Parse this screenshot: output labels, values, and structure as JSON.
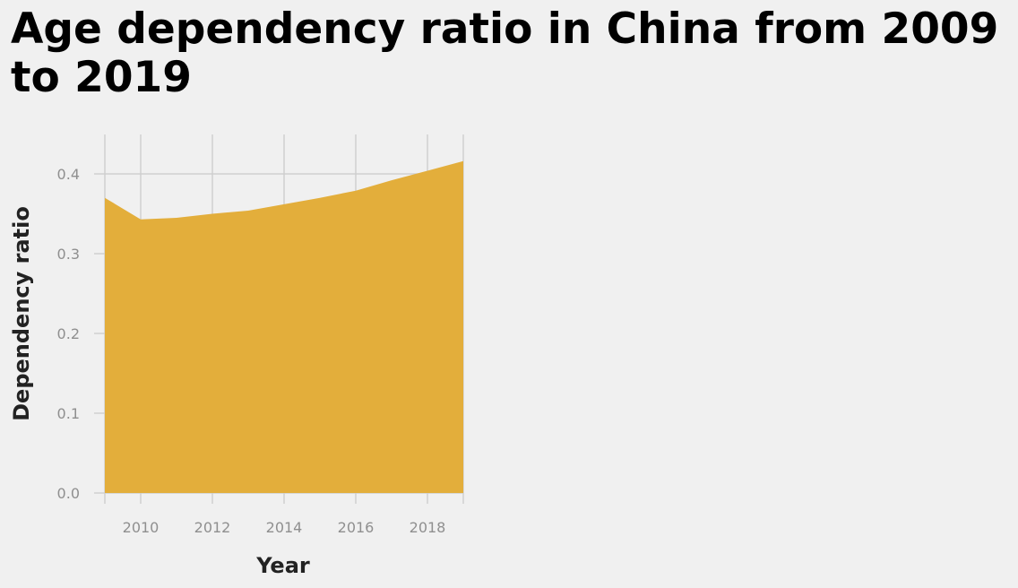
{
  "chart_data": {
    "type": "area",
    "title": "Age dependency ratio in China from 2009 to 2019",
    "xlabel": "Year",
    "ylabel": "Dependency ratio",
    "x": [
      2009,
      2010,
      2011,
      2012,
      2013,
      2014,
      2015,
      2016,
      2017,
      2018,
      2019
    ],
    "series": [
      {
        "values": [
          0.37,
          0.343,
          0.345,
          0.35,
          0.354,
          0.362,
          0.37,
          0.379,
          0.392,
          0.404,
          0.416
        ]
      }
    ],
    "xticks": [
      "2010",
      "2012",
      "2014",
      "2016",
      "2018"
    ],
    "yticks": [
      "0.0",
      "0.1",
      "0.2",
      "0.3",
      "0.4"
    ],
    "xlim": [
      2009,
      2019
    ],
    "ylim": [
      0,
      0.45
    ],
    "grid": true,
    "color": "#e3ae3b"
  }
}
